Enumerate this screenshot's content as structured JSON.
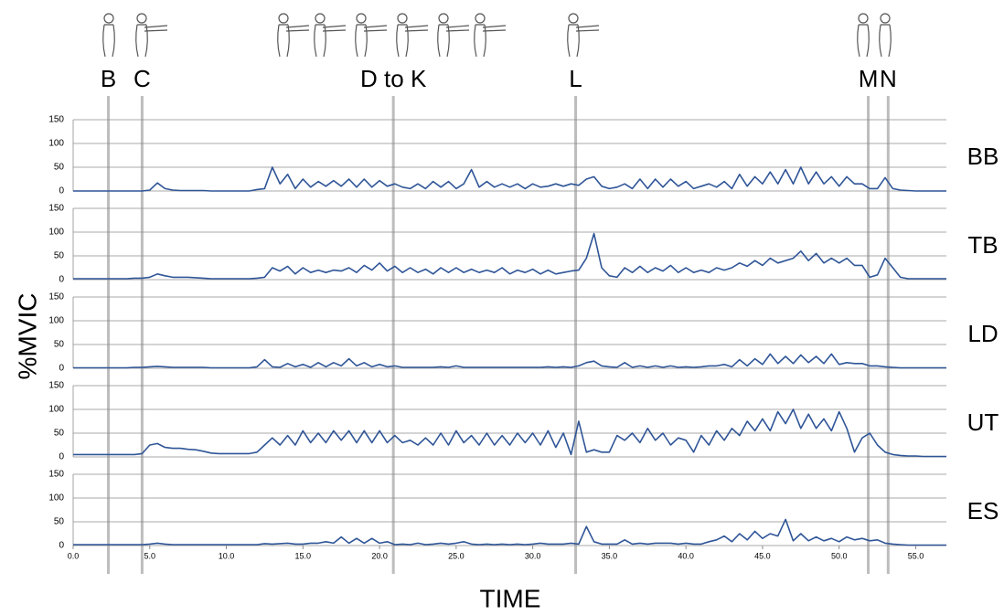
{
  "chart_data": {
    "type": "line",
    "x_label": "TIME",
    "y_label": "%MVIC",
    "color": "#2f5597",
    "grid": true,
    "layout": "stacked",
    "x": [
      0,
      0.5,
      1,
      1.5,
      2,
      2.5,
      3,
      3.5,
      4,
      4.5,
      5,
      5.5,
      6,
      6.5,
      7,
      7.5,
      8,
      8.5,
      9,
      9.5,
      10,
      10.5,
      11,
      11.5,
      12,
      12.5,
      13,
      13.5,
      14,
      14.5,
      15,
      15.5,
      16,
      16.5,
      17,
      17.5,
      18,
      18.5,
      19,
      19.5,
      20,
      20.5,
      21,
      21.5,
      22,
      22.5,
      23,
      23.5,
      24,
      24.5,
      25,
      25.5,
      26,
      26.5,
      27,
      27.5,
      28,
      28.5,
      29,
      29.5,
      30,
      30.5,
      31,
      31.5,
      32,
      32.5,
      33,
      33.5,
      34,
      34.5,
      35,
      35.5,
      36,
      36.5,
      37,
      37.5,
      38,
      38.5,
      39,
      39.5,
      40,
      40.5,
      41,
      41.5,
      42,
      42.5,
      43,
      43.5,
      44,
      44.5,
      45,
      45.5,
      46,
      46.5,
      47,
      47.5,
      48,
      48.5,
      49,
      49.5,
      50,
      50.5,
      51,
      51.5,
      52,
      52.5,
      53,
      53.5,
      54,
      54.5,
      55,
      55.5,
      56,
      56.5,
      57
    ],
    "xlim": [
      0,
      57
    ],
    "xticks": [
      {
        "value": 0,
        "label": "0.0"
      },
      {
        "value": 5,
        "label": "5.0"
      },
      {
        "value": 10,
        "label": "10.0"
      },
      {
        "value": 15,
        "label": "15.0"
      },
      {
        "value": 20,
        "label": "20.0"
      },
      {
        "value": 25,
        "label": "25.0"
      },
      {
        "value": 30,
        "label": "30.0"
      },
      {
        "value": 35,
        "label": "35.0"
      },
      {
        "value": 40,
        "label": "40.0"
      },
      {
        "value": 45,
        "label": "45.0"
      },
      {
        "value": 50,
        "label": "50.0"
      },
      {
        "value": 55,
        "label": "55.0"
      }
    ],
    "ylim": [
      0,
      150
    ],
    "yticks": [
      0,
      50,
      100,
      150
    ],
    "events": [
      {
        "label": "B",
        "x": 2.3
      },
      {
        "label": "C",
        "x": 4.5
      },
      {
        "label": "D to K",
        "x": 20.9
      },
      {
        "label": "L",
        "x": 32.8
      },
      {
        "label": "M",
        "x": 51.9
      },
      {
        "label": "N",
        "x": 53.2
      }
    ],
    "series": [
      {
        "name": "BB",
        "values": [
          0,
          0,
          0,
          0,
          0,
          0,
          0,
          0,
          0,
          0,
          2,
          17,
          5,
          2,
          1,
          1,
          1,
          1,
          0,
          0,
          0,
          0,
          0,
          0,
          3,
          5,
          50,
          15,
          35,
          5,
          25,
          8,
          20,
          10,
          22,
          10,
          25,
          8,
          25,
          8,
          22,
          10,
          15,
          8,
          5,
          15,
          5,
          20,
          8,
          20,
          5,
          15,
          45,
          8,
          20,
          8,
          15,
          8,
          15,
          5,
          15,
          8,
          10,
          15,
          10,
          15,
          12,
          25,
          30,
          10,
          5,
          8,
          15,
          5,
          25,
          5,
          25,
          8,
          25,
          10,
          20,
          5,
          10,
          15,
          8,
          20,
          5,
          35,
          10,
          30,
          15,
          40,
          15,
          45,
          15,
          50,
          15,
          40,
          15,
          30,
          10,
          30,
          15,
          15,
          5,
          5,
          28,
          5,
          2,
          1,
          0,
          0,
          0,
          0,
          0
        ]
      },
      {
        "name": "TB",
        "values": [
          2,
          2,
          2,
          2,
          2,
          2,
          2,
          2,
          3,
          3,
          5,
          12,
          8,
          5,
          5,
          5,
          4,
          3,
          2,
          2,
          2,
          2,
          2,
          2,
          3,
          5,
          25,
          18,
          28,
          12,
          25,
          15,
          20,
          15,
          20,
          18,
          25,
          15,
          30,
          20,
          35,
          18,
          28,
          15,
          25,
          15,
          22,
          12,
          25,
          15,
          25,
          15,
          22,
          15,
          20,
          15,
          25,
          12,
          20,
          15,
          22,
          12,
          20,
          12,
          15,
          18,
          20,
          45,
          97,
          25,
          8,
          5,
          25,
          15,
          28,
          15,
          25,
          18,
          30,
          15,
          25,
          15,
          20,
          15,
          25,
          20,
          25,
          35,
          28,
          40,
          30,
          45,
          35,
          40,
          45,
          60,
          40,
          55,
          35,
          45,
          35,
          45,
          30,
          30,
          5,
          10,
          45,
          25,
          5,
          2,
          2,
          2,
          2,
          2,
          2
        ]
      },
      {
        "name": "LD",
        "values": [
          1,
          1,
          1,
          1,
          1,
          1,
          1,
          1,
          2,
          2,
          3,
          4,
          3,
          2,
          2,
          2,
          2,
          2,
          1,
          1,
          1,
          1,
          1,
          1,
          3,
          18,
          3,
          2,
          10,
          3,
          8,
          2,
          12,
          3,
          12,
          5,
          20,
          5,
          12,
          3,
          8,
          3,
          5,
          2,
          2,
          2,
          2,
          2,
          3,
          2,
          5,
          2,
          2,
          2,
          2,
          2,
          2,
          2,
          2,
          2,
          2,
          2,
          3,
          2,
          3,
          2,
          5,
          12,
          15,
          5,
          3,
          2,
          12,
          2,
          5,
          2,
          5,
          2,
          5,
          2,
          3,
          2,
          3,
          5,
          5,
          8,
          3,
          18,
          5,
          20,
          8,
          30,
          10,
          25,
          10,
          28,
          12,
          25,
          10,
          30,
          8,
          12,
          10,
          10,
          5,
          5,
          3,
          2,
          1,
          1,
          1,
          1,
          1,
          1,
          1
        ]
      },
      {
        "name": "UT",
        "values": [
          5,
          5,
          5,
          5,
          5,
          5,
          5,
          5,
          5,
          7,
          25,
          28,
          20,
          18,
          18,
          16,
          15,
          12,
          8,
          7,
          7,
          7,
          7,
          7,
          10,
          25,
          40,
          25,
          45,
          25,
          55,
          30,
          50,
          30,
          55,
          35,
          55,
          30,
          55,
          30,
          55,
          30,
          45,
          30,
          35,
          25,
          40,
          25,
          50,
          25,
          55,
          30,
          45,
          25,
          50,
          25,
          45,
          25,
          50,
          30,
          50,
          25,
          55,
          20,
          50,
          5,
          75,
          10,
          15,
          10,
          10,
          45,
          35,
          50,
          30,
          60,
          35,
          50,
          25,
          40,
          35,
          10,
          45,
          25,
          55,
          35,
          60,
          45,
          75,
          55,
          80,
          55,
          95,
          70,
          100,
          60,
          90,
          60,
          80,
          55,
          95,
          60,
          10,
          40,
          50,
          25,
          10,
          5,
          3,
          2,
          2,
          1,
          1,
          1,
          1
        ]
      },
      {
        "name": "ES",
        "values": [
          2,
          2,
          2,
          2,
          2,
          2,
          2,
          2,
          2,
          2,
          3,
          5,
          3,
          2,
          2,
          2,
          2,
          2,
          2,
          2,
          2,
          2,
          2,
          2,
          2,
          4,
          3,
          4,
          5,
          3,
          3,
          5,
          5,
          8,
          5,
          18,
          5,
          15,
          5,
          15,
          5,
          8,
          2,
          3,
          2,
          5,
          2,
          3,
          5,
          3,
          5,
          8,
          3,
          2,
          3,
          2,
          3,
          2,
          3,
          2,
          3,
          5,
          3,
          3,
          3,
          5,
          3,
          40,
          8,
          3,
          3,
          3,
          12,
          3,
          5,
          3,
          5,
          5,
          5,
          3,
          5,
          3,
          3,
          8,
          12,
          20,
          8,
          25,
          12,
          30,
          15,
          25,
          20,
          55,
          10,
          25,
          10,
          18,
          10,
          15,
          8,
          18,
          12,
          15,
          10,
          12,
          5,
          3,
          2,
          1,
          1,
          1,
          1,
          1,
          1
        ]
      }
    ]
  }
}
